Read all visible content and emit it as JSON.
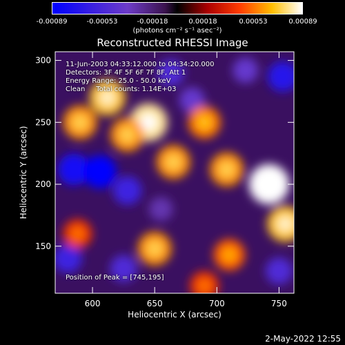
{
  "colorbar": {
    "ticks": [
      "-0.00089",
      "-0.00053",
      "-0.00018",
      "0.00018",
      "0.00053",
      "0.00089"
    ],
    "unit_text": "(photons cm⁻² s⁻¹ asec⁻²)"
  },
  "info": {
    "time_range": "11-Jun-2003 04:33:12.000 to 04:34:20.000",
    "detectors": "Detectors: 3F 4F 5F 6F 7F 8F, Att 1",
    "energy": "Energy Range: 25.0 - 50.0 keV",
    "clean": "Clean     Total counts: 1.14E+03",
    "peak": "Position of Peak = [745,195]"
  },
  "timestamp": "2-May-2022 12:55",
  "chart_data": {
    "type": "heatmap",
    "title": "Reconstructed RHESSI Image",
    "xlabel": "Heliocentric X (arcsec)",
    "ylabel": "Heliocentric Y (arcsec)",
    "xlim": [
      570,
      762
    ],
    "ylim": [
      112,
      307
    ],
    "xticks": [
      600,
      650,
      700,
      750
    ],
    "yticks": [
      150,
      200,
      250,
      300
    ],
    "colormap": "thermal (blue-violet-black-red-orange-yellow-white)",
    "value_range": [
      -0.00089,
      0.00089
    ],
    "peak_position": [
      745,
      195
    ],
    "bright_regions": [
      {
        "x": 590,
        "y": 250,
        "value": 0.0006
      },
      {
        "x": 612,
        "y": 270,
        "value": 0.0007
      },
      {
        "x": 645,
        "y": 250,
        "value": 0.0008
      },
      {
        "x": 628,
        "y": 240,
        "value": 0.0006
      },
      {
        "x": 690,
        "y": 250,
        "value": 0.00055
      },
      {
        "x": 665,
        "y": 218,
        "value": 0.0006
      },
      {
        "x": 708,
        "y": 212,
        "value": 0.0006
      },
      {
        "x": 742,
        "y": 200,
        "value": 0.00089
      },
      {
        "x": 755,
        "y": 168,
        "value": 0.0007
      },
      {
        "x": 650,
        "y": 148,
        "value": 0.0006
      },
      {
        "x": 710,
        "y": 143,
        "value": 0.0005
      },
      {
        "x": 690,
        "y": 118,
        "value": 0.0004
      },
      {
        "x": 588,
        "y": 160,
        "value": 0.0004
      }
    ],
    "dark_regions": [
      {
        "x": 585,
        "y": 212,
        "value": -0.0008
      },
      {
        "x": 606,
        "y": 210,
        "value": -0.00089
      },
      {
        "x": 628,
        "y": 195,
        "value": -0.0006
      },
      {
        "x": 625,
        "y": 132,
        "value": -0.0005
      },
      {
        "x": 663,
        "y": 290,
        "value": -0.0005
      },
      {
        "x": 723,
        "y": 292,
        "value": -0.0004
      },
      {
        "x": 753,
        "y": 287,
        "value": -0.0007
      },
      {
        "x": 680,
        "y": 268,
        "value": -0.0004
      },
      {
        "x": 750,
        "y": 130,
        "value": -0.0005
      },
      {
        "x": 580,
        "y": 140,
        "value": -0.0006
      },
      {
        "x": 655,
        "y": 180,
        "value": -0.0003
      }
    ]
  }
}
